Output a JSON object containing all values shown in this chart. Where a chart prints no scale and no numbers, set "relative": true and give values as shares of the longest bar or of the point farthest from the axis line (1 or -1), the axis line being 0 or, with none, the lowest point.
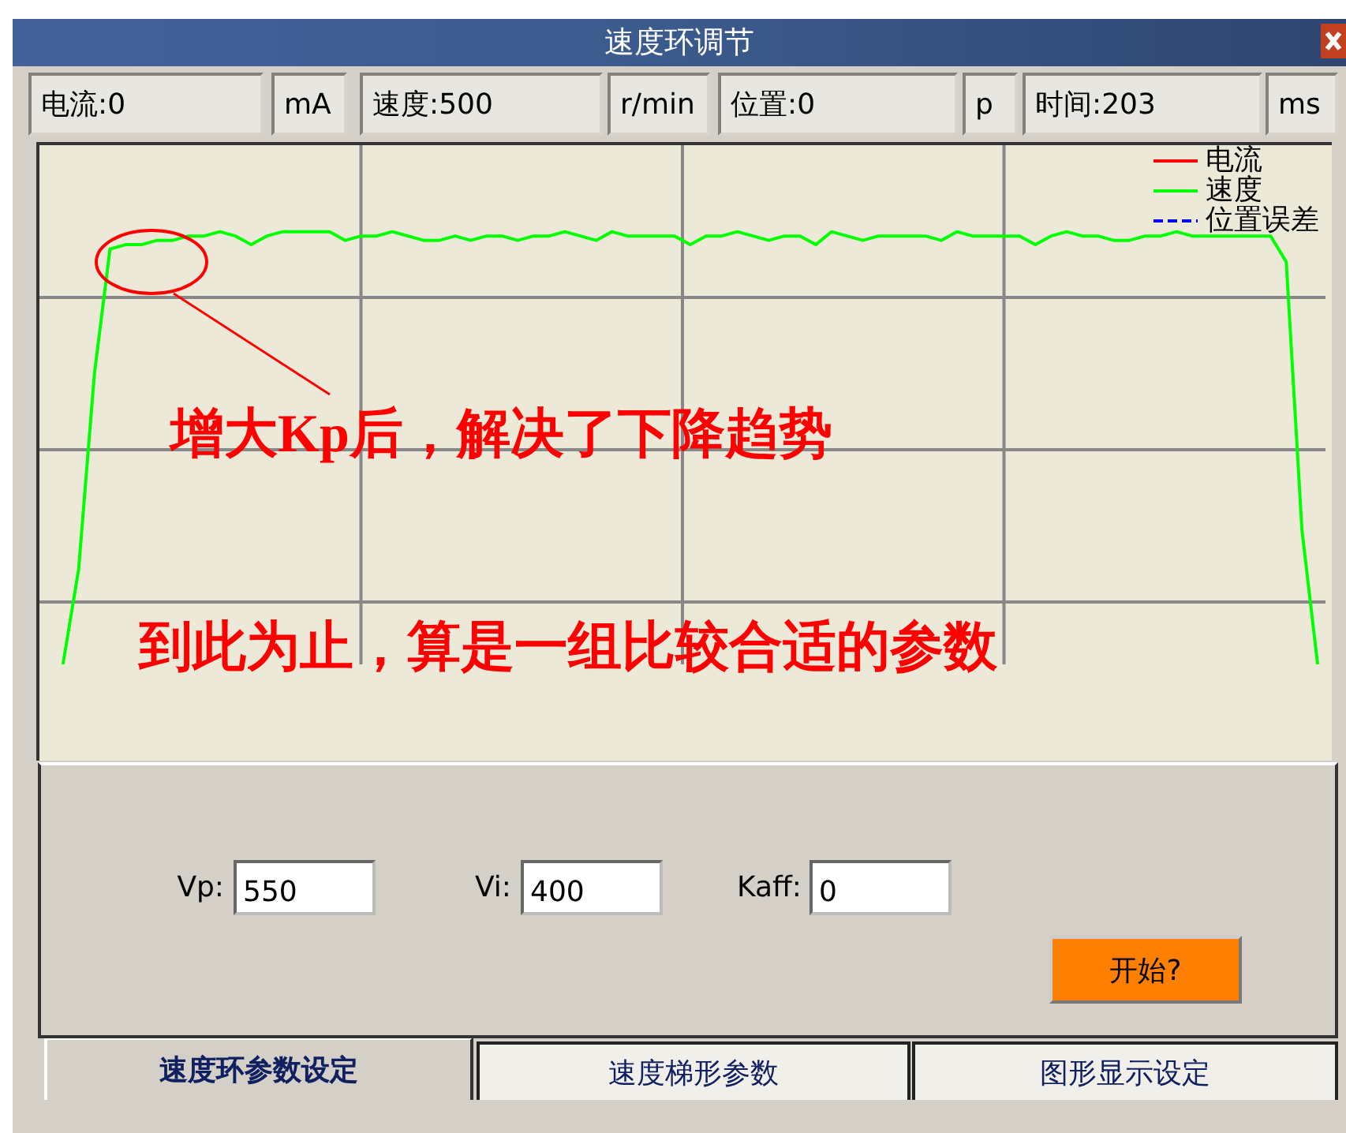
{
  "chart_data": {
    "type": "line",
    "title": "速度环调节",
    "relative": true,
    "grid": true,
    "legend": "top right",
    "tick_labels": false,
    "marker": "none",
    "categories": [
      null,
      null,
      null,
      null,
      null,
      null,
      null,
      null,
      null,
      null,
      null,
      null,
      null,
      null,
      null,
      null,
      null,
      null,
      null,
      null,
      null,
      null,
      null,
      null,
      null,
      null,
      null,
      null,
      null,
      null,
      null,
      null,
      null,
      null,
      null,
      null,
      null,
      null,
      null,
      null,
      null,
      null,
      null,
      null,
      null,
      null,
      null,
      null,
      null,
      null,
      null,
      null,
      null,
      null,
      null,
      null,
      null,
      null,
      null,
      null,
      null,
      null,
      null,
      null,
      null,
      null,
      null,
      null,
      null,
      null,
      null,
      null,
      null,
      null,
      null,
      null,
      null,
      null,
      null,
      null,
      null,
      null
    ],
    "series": [
      {
        "name": "电流",
        "color": "#ff0000",
        "line_style": "solid",
        "values": [
          null,
          null,
          null,
          null,
          null,
          null,
          null,
          null,
          null,
          null,
          null,
          null,
          null,
          null,
          null,
          null,
          null,
          null,
          null,
          null,
          null,
          null,
          null,
          null,
          null,
          null,
          null,
          null,
          null,
          null,
          null,
          null,
          null,
          null,
          null,
          null,
          null,
          null,
          null,
          null,
          null,
          null,
          null,
          null,
          null,
          null,
          null,
          null,
          null,
          null,
          null,
          null,
          null,
          null,
          null,
          null,
          null,
          null,
          null,
          null,
          null,
          null,
          null,
          null,
          null,
          null,
          null,
          null,
          null,
          null,
          null,
          null,
          null,
          null,
          null,
          null,
          null,
          null,
          null,
          null,
          null,
          null
        ]
      },
      {
        "name": "速度",
        "color": "#00ff00",
        "line_style": "solid",
        "values": [
          null,
          0,
          0.22,
          0.67,
          0.96,
          0.97,
          0.97,
          0.98,
          0.98,
          0.99,
          0.99,
          1,
          0.99,
          0.97,
          0.99,
          1,
          1,
          1,
          1,
          0.98,
          0.99,
          0.99,
          1,
          0.99,
          0.98,
          0.98,
          0.99,
          0.98,
          0.99,
          0.99,
          0.98,
          0.99,
          0.99,
          1,
          0.99,
          0.98,
          1,
          0.99,
          0.99,
          0.99,
          0.99,
          0.97,
          0.99,
          0.99,
          1,
          0.99,
          0.98,
          0.99,
          0.99,
          0.97,
          1,
          0.99,
          0.98,
          0.99,
          0.99,
          0.99,
          0.99,
          0.98,
          1,
          0.99,
          0.99,
          0.99,
          0.99,
          0.97,
          0.99,
          1,
          0.99,
          0.99,
          0.98,
          0.98,
          0.99,
          0.99,
          1,
          0.99,
          0.99,
          0.99,
          0.99,
          0.99,
          0.99,
          0.93,
          0.31,
          0
        ]
      },
      {
        "name": "位置误差",
        "color": "#0000ff",
        "line_style": "dashed",
        "values": [
          null,
          null,
          null,
          null,
          null,
          null,
          null,
          null,
          null,
          null,
          null,
          null,
          null,
          null,
          null,
          null,
          null,
          null,
          null,
          null,
          null,
          null,
          null,
          null,
          null,
          null,
          null,
          null,
          null,
          null,
          null,
          null,
          null,
          null,
          null,
          null,
          null,
          null,
          null,
          null,
          null,
          null,
          null,
          null,
          null,
          null,
          null,
          null,
          null,
          null,
          null,
          null,
          null,
          null,
          null,
          null,
          null,
          null,
          null,
          null,
          null,
          null,
          null,
          null,
          null,
          null,
          null,
          null,
          null,
          null,
          null,
          null,
          null,
          null,
          null,
          null,
          null,
          null,
          null,
          null,
          null,
          null
        ]
      }
    ],
    "annotations": [
      "增大Kp后，解决了下降趋势",
      "到此为止，算是一组比较合适的参数",
      "电流:0",
      "mA",
      "速度:500",
      "r/min",
      "位置:0",
      "p",
      "时间:203",
      "ms",
      "Vp:",
      "550",
      "Vi:",
      "400",
      "Kaff:",
      "0",
      "开始?",
      "速度环参数设定",
      "速度梯形参数",
      "图形显示设定"
    ]
  }
}
